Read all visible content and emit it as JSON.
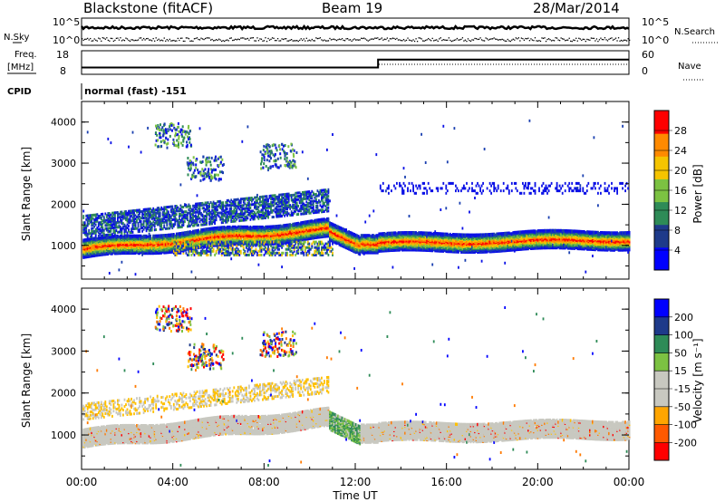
{
  "header": {
    "station": "Blackstone (fitACF)",
    "beam": "Beam 19",
    "date": "28/Mar/2014"
  },
  "noise_panel": {
    "left_label": "N.Sky",
    "right_label": "N.Search",
    "ticks": [
      "10^5",
      "10^0"
    ]
  },
  "freq_panel": {
    "left_label_1": "Freq.",
    "left_label_2": "[MHz]",
    "left_ticks": [
      "18",
      "8"
    ],
    "right_label": "Nave",
    "right_ticks": [
      "60",
      "0"
    ]
  },
  "cpid": {
    "label": "CPID",
    "value": "normal (fast) -151"
  },
  "power_panel": {
    "ylabel": "Slant Range [km]",
    "yticks": [
      "4000",
      "3000",
      "2000",
      "1000"
    ],
    "colorbar_label": "Power [dB]",
    "colorbar_ticks": [
      "28",
      "24",
      "20",
      "16",
      "12",
      "8",
      "4"
    ],
    "colorbar_colors": [
      "#0000ff",
      "#1e3a8a",
      "#2e8b57",
      "#7cc242",
      "#f5c400",
      "#ff8a00",
      "#ff0000"
    ]
  },
  "velocity_panel": {
    "ylabel": "Slant Range [km]",
    "yticks": [
      "4000",
      "3000",
      "2000",
      "1000"
    ],
    "colorbar_label": "Velocity [m s⁻¹]",
    "colorbar_ticks": [
      "200",
      "100",
      "50",
      "15",
      "-15",
      "-50",
      "-100",
      "-200"
    ],
    "colorbar_colors": [
      "#ff0000",
      "#ff5a00",
      "#ffa500",
      "#c8c8c0",
      "#c8c8c0",
      "#7cc242",
      "#2e8b57",
      "#1e3a8a",
      "#0000ff"
    ]
  },
  "xaxis": {
    "label": "Time UT",
    "ticks": [
      "00:00",
      "04:00",
      "08:00",
      "12:00",
      "16:00",
      "20:00",
      "00:00"
    ]
  },
  "chart_data": [
    {
      "type": "line",
      "title": "Blackstone (fitACF) Beam 19 28/Mar/2014",
      "xlabel": "Time UT",
      "ylabel": "Freq. [MHz]",
      "xlim": [
        0,
        24
      ],
      "ylim": [
        8,
        18
      ],
      "series": [
        {
          "x": [
            0,
            13,
            13,
            24
          ],
          "values": [
            10.5,
            10.5,
            14.5,
            14.5
          ]
        }
      ]
    },
    {
      "type": "heatmap",
      "xlabel": "Time UT",
      "ylabel": "Slant Range [km]",
      "colorbar": "Power [dB]",
      "xlim": [
        0,
        24
      ],
      "ylim": [
        180,
        4500
      ],
      "zlim": [
        0,
        30
      ],
      "features": [
        {
          "t_start": 0,
          "t_end": 10.8,
          "range_start_km": 1000,
          "range_end_km": 2200,
          "peak_db": 28
        },
        {
          "t_start": 13,
          "t_end": 24,
          "range_start_km": 1100,
          "range_end_km": 1200,
          "peak_db": 26
        }
      ]
    },
    {
      "type": "heatmap",
      "xlabel": "Time UT",
      "ylabel": "Slant Range [km]",
      "colorbar": "Velocity [m s⁻¹]",
      "xlim": [
        0,
        24
      ],
      "ylim": [
        180,
        4500
      ],
      "zlim": [
        -200,
        200
      ]
    }
  ]
}
